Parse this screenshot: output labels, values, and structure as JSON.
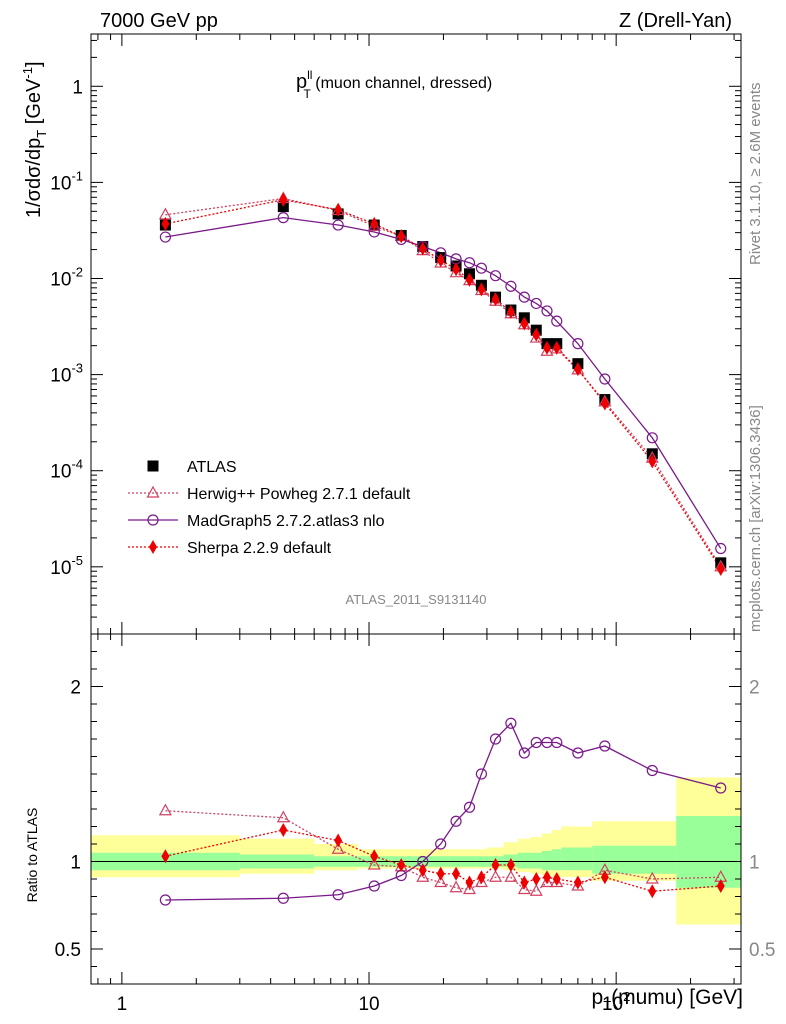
{
  "header": {
    "left": "7000 GeV pp",
    "right": "Z (Drell-Yan)"
  },
  "side_text": {
    "rivet": "Rivet 3.1.10, ≥ 2.6M events",
    "mcplots": "mcplots.cern.ch [arXiv:1306.3436]"
  },
  "plot_title": {
    "main": "p",
    "sup": "ll",
    "sub": "T",
    "rest": " (muon channel, dressed)"
  },
  "analysis_id": "ATLAS_2011_S9131140",
  "colors": {
    "atlas": "#000000",
    "herwig": "#d04060",
    "madgraph": "#7a1a8a",
    "sherpa": "#ee0000",
    "band_inner": "#99ff99",
    "band_outer": "#ffff99"
  },
  "chart_data": [
    {
      "type": "scatter",
      "name": "main",
      "ylabel": "1/σdσ/dp_T [GeV^-1]",
      "xscale": "log",
      "yscale": "log",
      "xlim": [
        0.75,
        320
      ],
      "ylim": [
        2e-06,
        3.5
      ],
      "x_ticklabels": [
        "1",
        "10",
        "10^2"
      ],
      "y_ticklabels": [
        "10^-5",
        "10^-4",
        "10^-3",
        "10^-2",
        "10^-1",
        "1"
      ],
      "legend_position": "bottom-left",
      "legend": [
        {
          "key": "atlas",
          "label": "ATLAS"
        },
        {
          "key": "herwig",
          "label": "Herwig++ Powheg 2.7.1 default"
        },
        {
          "key": "madgraph",
          "label": "MadGraph5 2.7.2.atlas3 nlo"
        },
        {
          "key": "sherpa",
          "label": "Sherpa 2.2.9 default"
        }
      ],
      "x": [
        1.5,
        4.5,
        7.5,
        10.5,
        13.5,
        16.5,
        19.5,
        22.5,
        25.5,
        28.5,
        32.5,
        37.5,
        42.5,
        47.5,
        52.5,
        57.5,
        70,
        90,
        140,
        265
      ],
      "series": [
        {
          "key": "atlas",
          "name": "ATLAS",
          "values": [
            0.036,
            0.056,
            0.047,
            0.036,
            0.028,
            0.0215,
            0.0165,
            0.0135,
            0.0112,
            0.0085,
            0.0064,
            0.0047,
            0.0039,
            0.0029,
            0.0021,
            0.0021,
            0.0013,
            0.00055,
            0.00015,
            1.1e-05
          ]
        },
        {
          "key": "herwig",
          "name": "Herwig++ Powheg 2.7.1 default",
          "values": [
            0.046,
            0.068,
            0.051,
            0.035,
            0.0275,
            0.0195,
            0.0145,
            0.0115,
            0.0095,
            0.0075,
            0.0058,
            0.0043,
            0.0033,
            0.0024,
            0.00175,
            0.00185,
            0.00112,
            0.00052,
            0.000135,
            1e-05
          ]
        },
        {
          "key": "madgraph",
          "name": "MadGraph5 2.7.2.atlas3 nlo",
          "values": [
            0.027,
            0.043,
            0.036,
            0.0305,
            0.0255,
            0.0215,
            0.0185,
            0.016,
            0.0146,
            0.0128,
            0.0107,
            0.0083,
            0.0064,
            0.0055,
            0.0046,
            0.0036,
            0.0021,
            0.0009,
            0.00022,
            1.55e-05
          ]
        },
        {
          "key": "sherpa",
          "name": "Sherpa 2.2.9 default",
          "values": [
            0.037,
            0.066,
            0.052,
            0.037,
            0.0275,
            0.0205,
            0.0155,
            0.0125,
            0.0097,
            0.0077,
            0.0061,
            0.0045,
            0.0034,
            0.0026,
            0.0019,
            0.0019,
            0.00114,
            0.0005,
            0.000125,
            9.5e-06
          ]
        }
      ]
    },
    {
      "type": "line",
      "name": "ratio",
      "ylabel": "Ratio to ATLAS",
      "xlabel": "p_T(mumu) [GeV]",
      "xscale": "log",
      "xlim": [
        0.75,
        320
      ],
      "ylim": [
        0.3,
        2.3
      ],
      "y_ticklabels": [
        "0.5",
        "1",
        "2"
      ],
      "x": [
        1.5,
        4.5,
        7.5,
        10.5,
        13.5,
        16.5,
        19.5,
        22.5,
        25.5,
        28.5,
        32.5,
        37.5,
        42.5,
        47.5,
        52.5,
        57.5,
        70,
        90,
        140,
        265
      ],
      "series": [
        {
          "key": "herwig",
          "name": "Herwig++ Powheg 2.7.1 default",
          "values": [
            1.29,
            1.25,
            1.07,
            0.98,
            0.97,
            0.91,
            0.88,
            0.85,
            0.84,
            0.88,
            0.91,
            0.91,
            0.84,
            0.83,
            0.88,
            0.88,
            0.86,
            0.95,
            0.9,
            0.91
          ]
        },
        {
          "key": "madgraph",
          "name": "MadGraph5 2.7.2.atlas3 nlo",
          "values": [
            0.78,
            0.79,
            0.81,
            0.86,
            0.92,
            1.0,
            1.1,
            1.23,
            1.31,
            1.5,
            1.7,
            1.79,
            1.62,
            1.68,
            1.68,
            1.68,
            1.62,
            1.66,
            1.52,
            1.42
          ]
        },
        {
          "key": "sherpa",
          "name": "Sherpa 2.2.9 default",
          "values": [
            1.03,
            1.18,
            1.12,
            1.03,
            0.98,
            0.95,
            0.93,
            0.93,
            0.88,
            0.91,
            0.98,
            0.98,
            0.88,
            0.9,
            0.91,
            0.9,
            0.88,
            0.91,
            0.83,
            0.86
          ]
        }
      ],
      "bands": {
        "edges": [
          0.75,
          3,
          6,
          9,
          12,
          15,
          18,
          21,
          24,
          27,
          30,
          35,
          40,
          45,
          50,
          55,
          60,
          80,
          175,
          320
        ],
        "inner": [
          [
            0.95,
            1.05
          ],
          [
            0.96,
            1.04
          ],
          [
            0.97,
            1.03
          ],
          [
            0.97,
            1.03
          ],
          [
            0.97,
            1.03
          ],
          [
            0.97,
            1.03
          ],
          [
            0.97,
            1.03
          ],
          [
            0.97,
            1.03
          ],
          [
            0.97,
            1.03
          ],
          [
            0.97,
            1.03
          ],
          [
            0.97,
            1.03
          ],
          [
            0.97,
            1.04
          ],
          [
            0.96,
            1.05
          ],
          [
            0.96,
            1.05
          ],
          [
            0.95,
            1.06
          ],
          [
            0.95,
            1.07
          ],
          [
            0.95,
            1.08
          ],
          [
            0.93,
            1.09
          ],
          [
            0.85,
            1.26
          ]
        ],
        "outer": [
          [
            0.91,
            1.15
          ],
          [
            0.93,
            1.13
          ],
          [
            0.95,
            1.1
          ],
          [
            0.96,
            1.07
          ],
          [
            0.96,
            1.07
          ],
          [
            0.96,
            1.07
          ],
          [
            0.96,
            1.07
          ],
          [
            0.96,
            1.07
          ],
          [
            0.96,
            1.07
          ],
          [
            0.96,
            1.07
          ],
          [
            0.96,
            1.08
          ],
          [
            0.95,
            1.11
          ],
          [
            0.94,
            1.13
          ],
          [
            0.93,
            1.14
          ],
          [
            0.92,
            1.16
          ],
          [
            0.91,
            1.18
          ],
          [
            0.91,
            1.2
          ],
          [
            0.89,
            1.23
          ],
          [
            0.64,
            1.48
          ]
        ]
      }
    }
  ]
}
